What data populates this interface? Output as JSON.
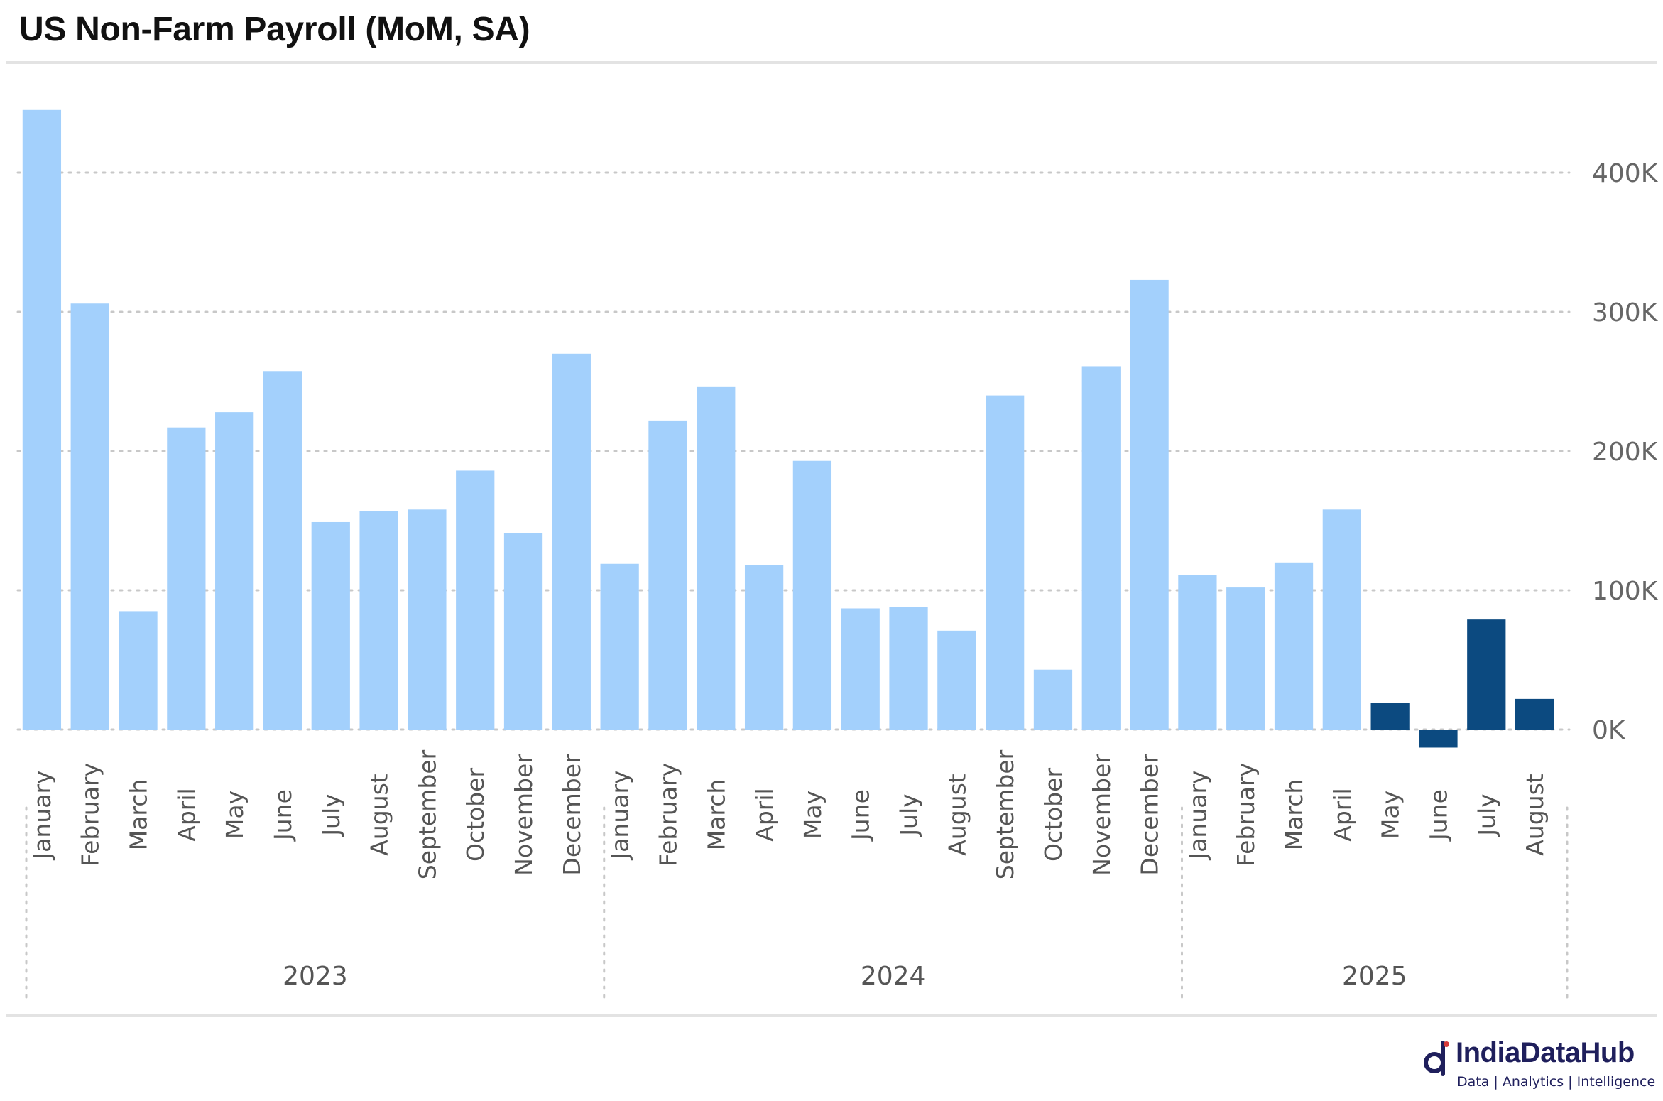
{
  "chart_data": {
    "type": "bar",
    "title": "US Non-Farm Payroll (MoM, SA)",
    "groups": [
      {
        "label": "2023",
        "start": 0,
        "count": 12
      },
      {
        "label": "2024",
        "start": 12,
        "count": 12
      },
      {
        "label": "2025",
        "start": 24,
        "count": 8
      }
    ],
    "categories": [
      "January",
      "February",
      "March",
      "April",
      "May",
      "June",
      "July",
      "August",
      "September",
      "October",
      "November",
      "December",
      "January",
      "February",
      "March",
      "April",
      "May",
      "June",
      "July",
      "August",
      "September",
      "October",
      "November",
      "December",
      "January",
      "February",
      "March",
      "April",
      "May",
      "June",
      "July",
      "August"
    ],
    "values": [
      445,
      306,
      85,
      217,
      228,
      257,
      149,
      157,
      158,
      186,
      141,
      270,
      119,
      222,
      246,
      118,
      193,
      87,
      88,
      71,
      240,
      43,
      261,
      323,
      111,
      102,
      120,
      158,
      19,
      -13,
      79,
      22
    ],
    "value_unit": "K",
    "highlight_from_index": 28,
    "colors": {
      "bar": "#a3d0fc",
      "highlight": "#0c4a80",
      "grid": "#c8c8c8"
    },
    "yticks": [
      0,
      100,
      200,
      300,
      400
    ],
    "ytick_labels": [
      "0K",
      "100K",
      "200K",
      "300K",
      "400K"
    ],
    "ylim": [
      -20,
      460
    ],
    "grid": true,
    "y_axis_side": "right"
  },
  "brand": {
    "name": "IndiaDataHub",
    "tagline": "Data | Analytics | Intelligence",
    "color": "#1f1f5c"
  }
}
